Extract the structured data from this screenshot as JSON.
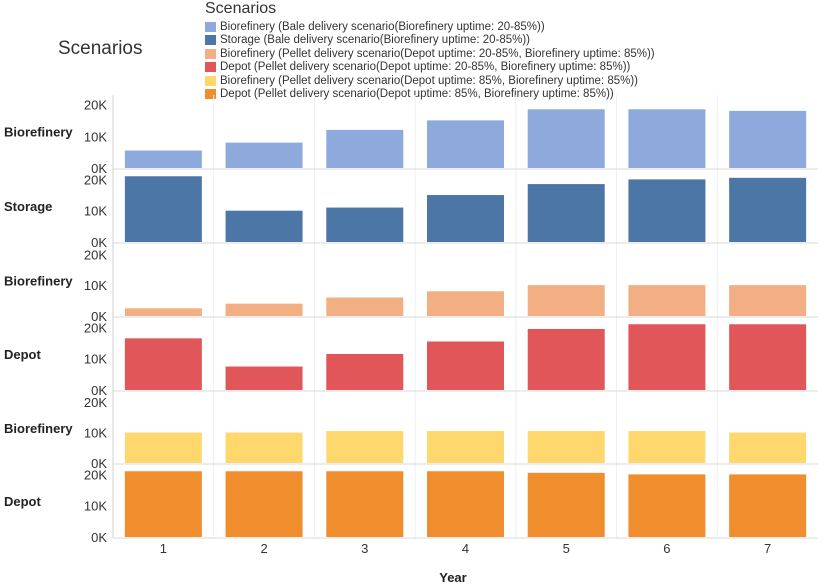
{
  "page_title": "Scenarios",
  "legend": {
    "title": "Scenarios",
    "items": [
      {
        "label": "Biorefinery (Bale delivery scenario(Biorefinery uptime: 20-85%))",
        "color": "#8eaadc"
      },
      {
        "label": "Storage (Bale delivery scenario(Biorefinery uptime: 20-85%))",
        "color": "#4c76a6"
      },
      {
        "label": "Biorefinery (Pellet delivery scenario(Depot uptime: 20-85%, Biorefinery uptime: 85%))",
        "color": "#f3af84"
      },
      {
        "label": "Depot (Pellet delivery scenario(Depot uptime: 20-85%, Biorefinery uptime: 85%))",
        "color": "#e05659"
      },
      {
        "label": "Biorefinery (Pellet delivery scenario(Depot uptime: 85%, Biorefinery uptime: 85%))",
        "color": "#fed86c"
      },
      {
        "label": "Depot (Pellet delivery scenario(Depot uptime: 85%, Biorefinery uptime: 85%))",
        "color": "#f08d2d"
      }
    ]
  },
  "chart_data": {
    "type": "bar",
    "title": "Scenarios",
    "xlabel": "Year",
    "ylabel": "",
    "categories": [
      "1",
      "2",
      "3",
      "4",
      "5",
      "6",
      "7"
    ],
    "ylim": [
      0,
      20000
    ],
    "yticks": [
      {
        "value": 0,
        "label": "0K"
      },
      {
        "value": 10000,
        "label": "10K"
      },
      {
        "value": 20000,
        "label": "20K"
      }
    ],
    "series": [
      {
        "name": "Biorefinery (Bale delivery scenario(Biorefinery uptime: 20-85%))",
        "row_label": "Biorefinery",
        "color": "#8eaadc",
        "values": [
          5500,
          8000,
          12000,
          15000,
          18500,
          18500,
          18000
        ]
      },
      {
        "name": "Storage (Bale delivery scenario(Biorefinery uptime: 20-85%))",
        "row_label": "Storage",
        "color": "#4c76a6",
        "values": [
          21000,
          10000,
          11000,
          15000,
          18500,
          20000,
          20500
        ]
      },
      {
        "name": "Biorefinery (Pellet delivery scenario(Depot uptime: 20-85%, Biorefinery uptime: 85%))",
        "row_label": "Biorefinery",
        "color": "#f3af84",
        "values": [
          2500,
          4000,
          6000,
          8000,
          10000,
          10000,
          10000
        ]
      },
      {
        "name": "Depot (Pellet delivery scenario(Depot uptime: 20-85%, Biorefinery uptime: 85%))",
        "row_label": "Depot",
        "color": "#e05659",
        "values": [
          16500,
          7500,
          11500,
          15500,
          19500,
          21000,
          21000
        ]
      },
      {
        "name": "Biorefinery (Pellet delivery scenario(Depot uptime: 85%, Biorefinery uptime: 85%))",
        "row_label": "Biorefinery",
        "color": "#fed86c",
        "values": [
          10000,
          10000,
          10500,
          10500,
          10500,
          10500,
          10000
        ]
      },
      {
        "name": "Depot (Pellet delivery scenario(Depot uptime: 85%, Biorefinery uptime: 85%))",
        "row_label": "Depot",
        "color": "#f08d2d",
        "values": [
          21000,
          21000,
          21000,
          21000,
          20500,
          20000,
          20000
        ]
      }
    ]
  }
}
